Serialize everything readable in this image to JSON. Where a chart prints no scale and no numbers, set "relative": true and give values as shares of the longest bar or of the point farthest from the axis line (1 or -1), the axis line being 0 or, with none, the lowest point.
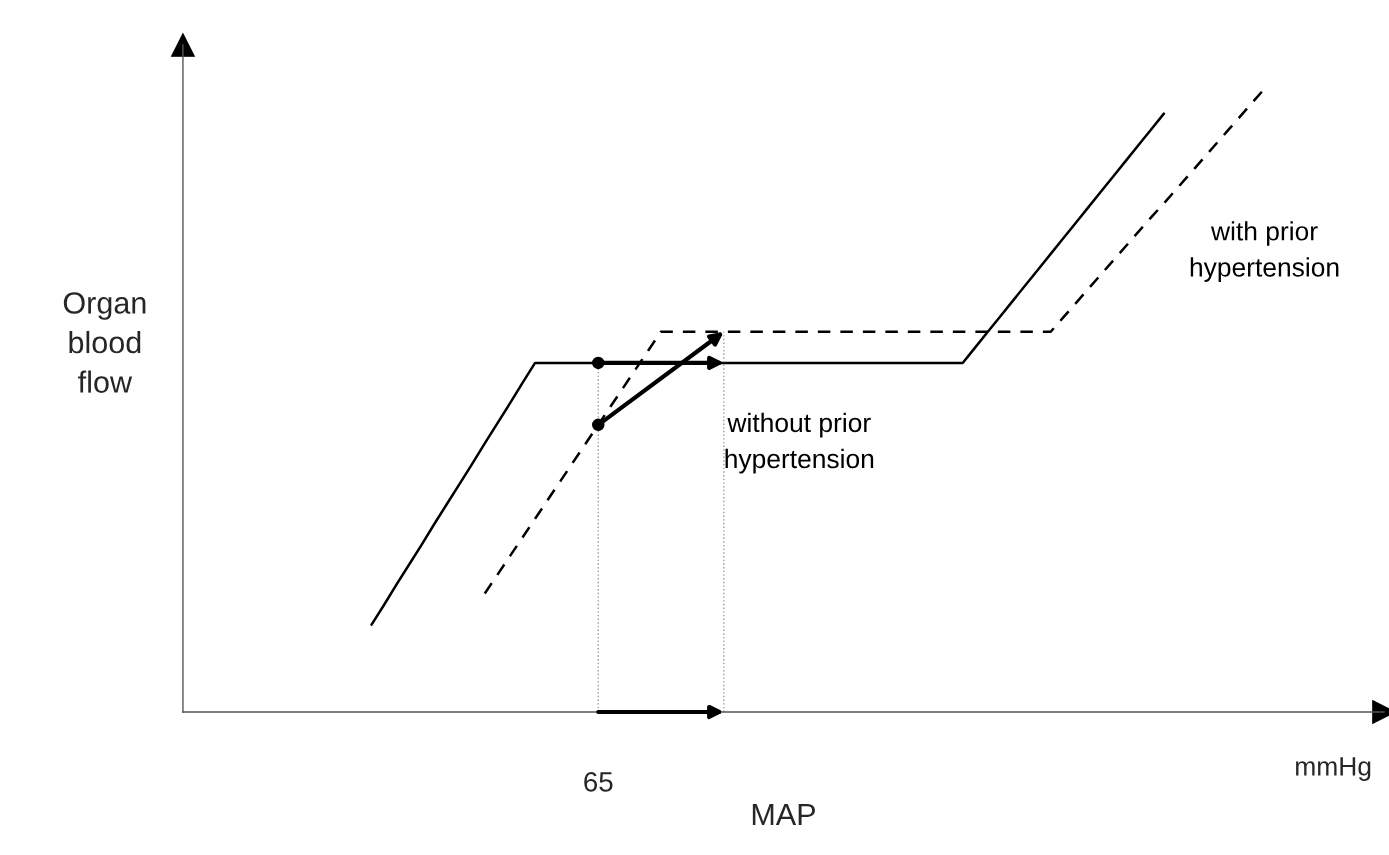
{
  "chart_data": {
    "type": "line",
    "relative": true,
    "xlabel": "MAP",
    "ylabel": "Organ blood flow",
    "categories": [
      null,
      null,
      null,
      null,
      null,
      null,
      null,
      null,
      null,
      null,
      null,
      null,
      null,
      null,
      null,
      null,
      null,
      null,
      null,
      null,
      null,
      null,
      null,
      null,
      null,
      null,
      null,
      null,
      null,
      null,
      null,
      null,
      null,
      null,
      null,
      null,
      null,
      null,
      null,
      null,
      null,
      null,
      null,
      null,
      null,
      null,
      null,
      null,
      null,
      null,
      null,
      null,
      null,
      null,
      null,
      null,
      null,
      null,
      null,
      null,
      null,
      null,
      null,
      null,
      null,
      null,
      null,
      null,
      null,
      null,
      null,
      null,
      null,
      null,
      null,
      null,
      null,
      null,
      null,
      null,
      null,
      null,
      null,
      null,
      null,
      null,
      null,
      null,
      null,
      null,
      null,
      null,
      null,
      null,
      null,
      null
    ],
    "series": [
      {
        "name": "without prior hypertension",
        "color": "#000000",
        "line_style": "solid",
        "values": [
          null,
          null,
          null,
          null,
          null,
          null,
          null,
          null,
          null,
          null,
          null,
          null,
          null,
          null,
          null,
          0.14,
          0.172,
          0.205,
          0.237,
          0.269,
          0.302,
          0.334,
          0.366,
          0.398,
          0.431,
          0.463,
          0.495,
          0.528,
          0.56,
          0.56,
          0.56,
          0.56,
          0.56,
          0.56,
          0.56,
          0.56,
          0.56,
          0.56,
          0.56,
          0.56,
          0.56,
          0.56,
          0.56,
          0.56,
          0.56,
          0.56,
          0.56,
          0.56,
          0.56,
          0.56,
          0.56,
          0.56,
          0.56,
          0.56,
          0.56,
          0.56,
          0.56,
          0.56,
          0.56,
          0.56,
          0.56,
          0.56,
          0.56,
          0.585,
          0.61,
          0.635,
          0.66,
          0.685,
          0.71,
          0.735,
          0.76,
          0.785,
          0.81,
          0.835,
          0.86,
          0.885,
          0.91,
          0.935,
          0.96,
          null,
          null,
          null,
          null,
          null,
          null,
          null,
          null,
          null,
          null,
          null,
          null,
          null,
          null,
          null,
          null,
          null
        ]
      },
      {
        "name": "with prior hypertension",
        "color": "#000000",
        "line_style": "dashed",
        "values": [
          null,
          null,
          null,
          null,
          null,
          null,
          null,
          null,
          null,
          null,
          null,
          null,
          null,
          null,
          null,
          null,
          null,
          null,
          null,
          null,
          null,
          null,
          null,
          null,
          0.19,
          0.22,
          0.25,
          0.28,
          0.31,
          0.34,
          0.37,
          0.4,
          0.43,
          0.46,
          0.49,
          0.52,
          0.55,
          0.58,
          0.61,
          0.61,
          0.61,
          0.61,
          0.61,
          0.61,
          0.61,
          0.61,
          0.61,
          0.61,
          0.61,
          0.61,
          0.61,
          0.61,
          0.61,
          0.61,
          0.61,
          0.61,
          0.61,
          0.61,
          0.61,
          0.61,
          0.61,
          0.61,
          0.61,
          0.61,
          0.61,
          0.61,
          0.61,
          0.61,
          0.61,
          0.61,
          0.633,
          0.656,
          0.679,
          0.702,
          0.725,
          0.748,
          0.771,
          0.794,
          0.816,
          0.839,
          0.862,
          0.885,
          0.908,
          0.931,
          0.954,
          0.977,
          1,
          null,
          null,
          null,
          null,
          null,
          null,
          null,
          null,
          null
        ]
      }
    ],
    "annotations": [
      "65",
      "mmHg"
    ],
    "marker": "none"
  }
}
